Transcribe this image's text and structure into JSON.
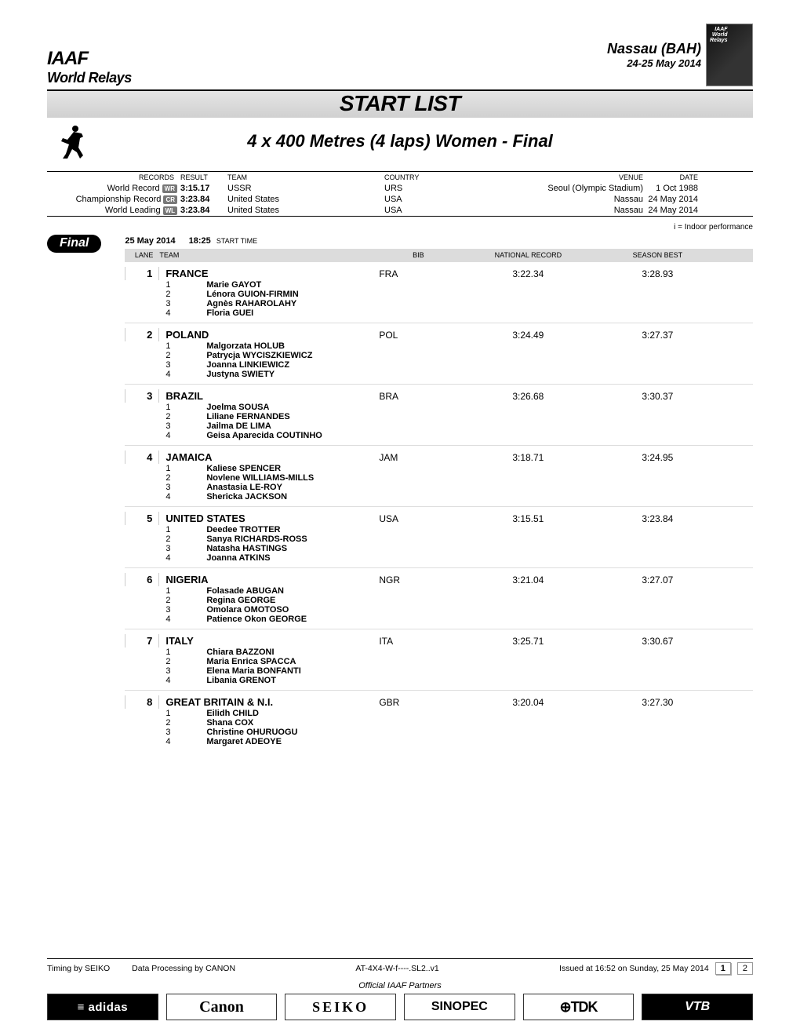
{
  "header": {
    "org_logo": "IAAF",
    "org_sub": "World Relays",
    "location": "Nassau (BAH)",
    "dates": "24-25 May 2014"
  },
  "title": "START LIST",
  "subtitle": "4 x 400 Metres (4 laps) Women - Final",
  "records": {
    "headers": {
      "records": "RECORDS",
      "result": "RESULT",
      "team": "TEAM",
      "country": "COUNTRY",
      "venue": "VENUE",
      "date": "DATE"
    },
    "rows": [
      {
        "name": "World Record",
        "tag": "WR",
        "result": "3:15.17",
        "team": "USSR",
        "country": "URS",
        "venue": "Seoul (Olympic Stadium)",
        "date": "1 Oct 1988"
      },
      {
        "name": "Championship Record",
        "tag": "CR",
        "result": "3:23.84",
        "team": "United States",
        "country": "USA",
        "venue": "Nassau",
        "date": "24 May 2014"
      },
      {
        "name": "World Leading",
        "tag": "WL",
        "result": "3:23.84",
        "team": "United States",
        "country": "USA",
        "venue": "Nassau",
        "date": "24 May 2014"
      }
    ]
  },
  "indoor_note": "i = Indoor performance",
  "final": {
    "badge": "Final",
    "date": "25 May  2014",
    "time": "18:25",
    "start_time_label": "START TIME",
    "headers": {
      "lane": "LANE",
      "team": "TEAM",
      "bib": "BIB",
      "nr": "NATIONAL RECORD",
      "sb": "SEASON BEST"
    },
    "teams": [
      {
        "lane": "1",
        "name": "FRANCE",
        "code": "FRA",
        "nr": "3:22.34",
        "sb": "3:28.93",
        "athletes": [
          "Marie  GAYOT",
          "Lénora  GUION-FIRMIN",
          "Agnès  RAHAROLAHY",
          "Floria  GUEI"
        ]
      },
      {
        "lane": "2",
        "name": "POLAND",
        "code": "POL",
        "nr": "3:24.49",
        "sb": "3:27.37",
        "athletes": [
          "Malgorzata  HOLUB",
          "Patrycja  WYCISZKIEWICZ",
          "Joanna  LINKIEWICZ",
          "Justyna  SWIETY"
        ]
      },
      {
        "lane": "3",
        "name": "BRAZIL",
        "code": "BRA",
        "nr": "3:26.68",
        "sb": "3:30.37",
        "athletes": [
          "Joelma  SOUSA",
          "Liliane  FERNANDES",
          "Jailma  DE LIMA",
          "Geisa Aparecida  COUTINHO"
        ]
      },
      {
        "lane": "4",
        "name": "JAMAICA",
        "code": "JAM",
        "nr": "3:18.71",
        "sb": "3:24.95",
        "athletes": [
          "Kaliese  SPENCER",
          "Novlene  WILLIAMS-MILLS",
          "Anastasia  LE-ROY",
          "Shericka  JACKSON"
        ]
      },
      {
        "lane": "5",
        "name": "UNITED STATES",
        "code": "USA",
        "nr": "3:15.51",
        "sb": "3:23.84",
        "athletes": [
          "Deedee  TROTTER",
          "Sanya  RICHARDS-ROSS",
          "Natasha  HASTINGS",
          "Joanna  ATKINS"
        ]
      },
      {
        "lane": "6",
        "name": "NIGERIA",
        "code": "NGR",
        "nr": "3:21.04",
        "sb": "3:27.07",
        "athletes": [
          "Folasade  ABUGAN",
          "Regina  GEORGE",
          "Omolara  OMOTOSO",
          "Patience Okon  GEORGE"
        ]
      },
      {
        "lane": "7",
        "name": "ITALY",
        "code": "ITA",
        "nr": "3:25.71",
        "sb": "3:30.67",
        "athletes": [
          "Chiara  BAZZONI",
          "Maria Enrica  SPACCA",
          "Elena Maria  BONFANTI",
          "Libania  GRENOT"
        ]
      },
      {
        "lane": "8",
        "name": "GREAT BRITAIN & N.I.",
        "code": "GBR",
        "nr": "3:20.04",
        "sb": "3:27.30",
        "athletes": [
          "Eilidh  CHILD",
          "Shana  COX",
          "Christine  OHURUOGU",
          "Margaret  ADEOYE"
        ]
      }
    ]
  },
  "footer": {
    "timing": "Timing by SEIKO",
    "data": "Data Processing by CANON",
    "code": "AT-4X4-W-f----.SL2..v1",
    "issued": "Issued at 16:52 on Sunday, 25 May  2014",
    "page_current": "1",
    "page_total": "2",
    "partners_label": "Official IAAF Partners",
    "partners": [
      "≡ adidas",
      "Canon",
      "SEIKO",
      "SINOPEC",
      "⊕TDK",
      "VTB"
    ]
  }
}
